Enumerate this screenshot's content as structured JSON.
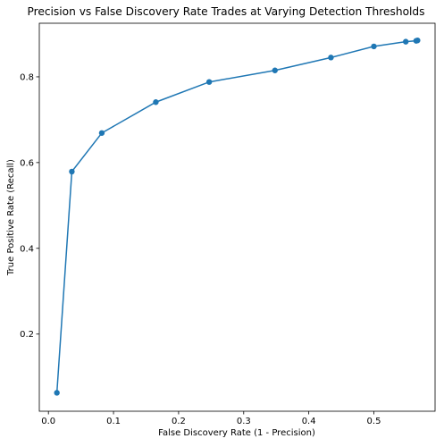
{
  "colors": {
    "series": "#1f77b4",
    "axes": "#000000",
    "background": "#ffffff"
  },
  "chart_data": {
    "type": "line",
    "title": "Precision vs False Discovery Rate Trades at Varying Detection Thresholds",
    "xlabel": "False Discovery Rate (1 - Precision)",
    "ylabel": "True Positive Rate (Recall)",
    "xlim": [
      -0.014,
      0.594
    ],
    "ylim": [
      0.02,
      0.925
    ],
    "xticks": [
      0.0,
      0.1,
      0.2,
      0.3,
      0.4,
      0.5
    ],
    "xtick_labels": [
      "0.0",
      "0.1",
      "0.2",
      "0.3",
      "0.4",
      "0.5"
    ],
    "yticks": [
      0.2,
      0.4,
      0.6,
      0.8
    ],
    "ytick_labels": [
      "0.2",
      "0.4",
      "0.6",
      "0.8"
    ],
    "grid": false,
    "markers": true,
    "series": [
      {
        "x": [
          0.013,
          0.036,
          0.082,
          0.165,
          0.247,
          0.348,
          0.434,
          0.5,
          0.549,
          0.565,
          0.567
        ],
        "values": [
          0.063,
          0.579,
          0.669,
          0.741,
          0.788,
          0.815,
          0.845,
          0.871,
          0.882,
          0.884,
          0.885
        ]
      }
    ]
  }
}
